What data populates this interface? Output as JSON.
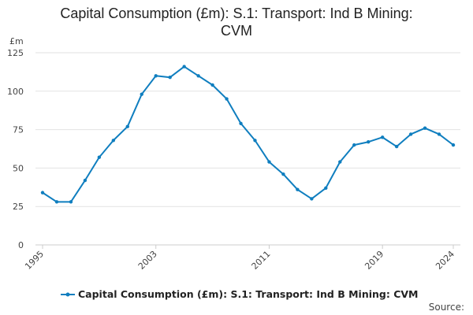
{
  "title_lines": [
    "Capital Consumption (£m): S.1: Transport: Ind B Mining:",
    "CVM"
  ],
  "source_label": "Source:",
  "colors": {
    "series": "#0f7ebf",
    "grid": "#e2e2e2",
    "axis": "#cccccc"
  },
  "chart_data": {
    "type": "line",
    "title": "Capital Consumption (£m): S.1: Transport: Ind B Mining: CVM",
    "ylabel": "£m",
    "xlim": [
      1995,
      2024
    ],
    "ylim": [
      0,
      125
    ],
    "yticks": [
      0,
      25,
      50,
      75,
      100,
      125
    ],
    "xticks": [
      1995,
      2003,
      2011,
      2019,
      2024
    ],
    "grid": true,
    "legend_position": "bottom",
    "x": [
      1995,
      1996,
      1997,
      1998,
      1999,
      2000,
      2001,
      2002,
      2003,
      2004,
      2005,
      2006,
      2007,
      2008,
      2009,
      2010,
      2011,
      2012,
      2013,
      2014,
      2015,
      2016,
      2017,
      2018,
      2019,
      2020,
      2021,
      2022,
      2023,
      2024
    ],
    "series": [
      {
        "name": "Capital Consumption (£m): S.1: Transport: Ind B Mining: CVM",
        "values": [
          34,
          28,
          28,
          42,
          57,
          68,
          77,
          98,
          110,
          109,
          116,
          110,
          104,
          95,
          79,
          68,
          54,
          46,
          36,
          30,
          37,
          54,
          65,
          67,
          70,
          64,
          72,
          76,
          72,
          65
        ]
      }
    ]
  }
}
